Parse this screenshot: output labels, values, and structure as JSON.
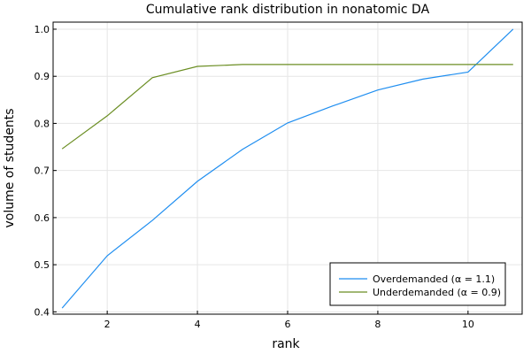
{
  "chart_data": {
    "type": "line",
    "title": "Cumulative rank distribution in nonatomic DA",
    "xlabel": "rank",
    "ylabel": "volume of students",
    "xlim": [
      0.8,
      11.2
    ],
    "ylim": [
      0.395,
      1.015
    ],
    "xticks": [
      2,
      4,
      6,
      8,
      10
    ],
    "yticks": [
      0.4,
      0.5,
      0.6,
      0.7,
      0.8,
      0.9,
      1.0
    ],
    "xtick_labels": [
      "2",
      "4",
      "6",
      "8",
      "10"
    ],
    "ytick_labels": [
      "0.4",
      "0.5",
      "0.6",
      "0.7",
      "0.8",
      "0.9",
      "1.0"
    ],
    "grid": true,
    "legend_position": "bottom-right",
    "x": [
      1,
      2,
      3,
      4,
      5,
      6,
      7,
      8,
      9,
      10,
      11
    ],
    "series": [
      {
        "name": "Overdemanded (α = 1.1)",
        "color": "#1f8ef0",
        "values": [
          0.408,
          0.519,
          0.594,
          0.677,
          0.745,
          0.801,
          0.837,
          0.871,
          0.894,
          0.909,
          1.0
        ]
      },
      {
        "name": "Underdemanded (α = 0.9)",
        "color": "#6b8e23",
        "values": [
          0.746,
          0.816,
          0.897,
          0.921,
          0.925,
          0.925,
          0.925,
          0.925,
          0.925,
          0.925,
          0.925
        ]
      }
    ]
  }
}
